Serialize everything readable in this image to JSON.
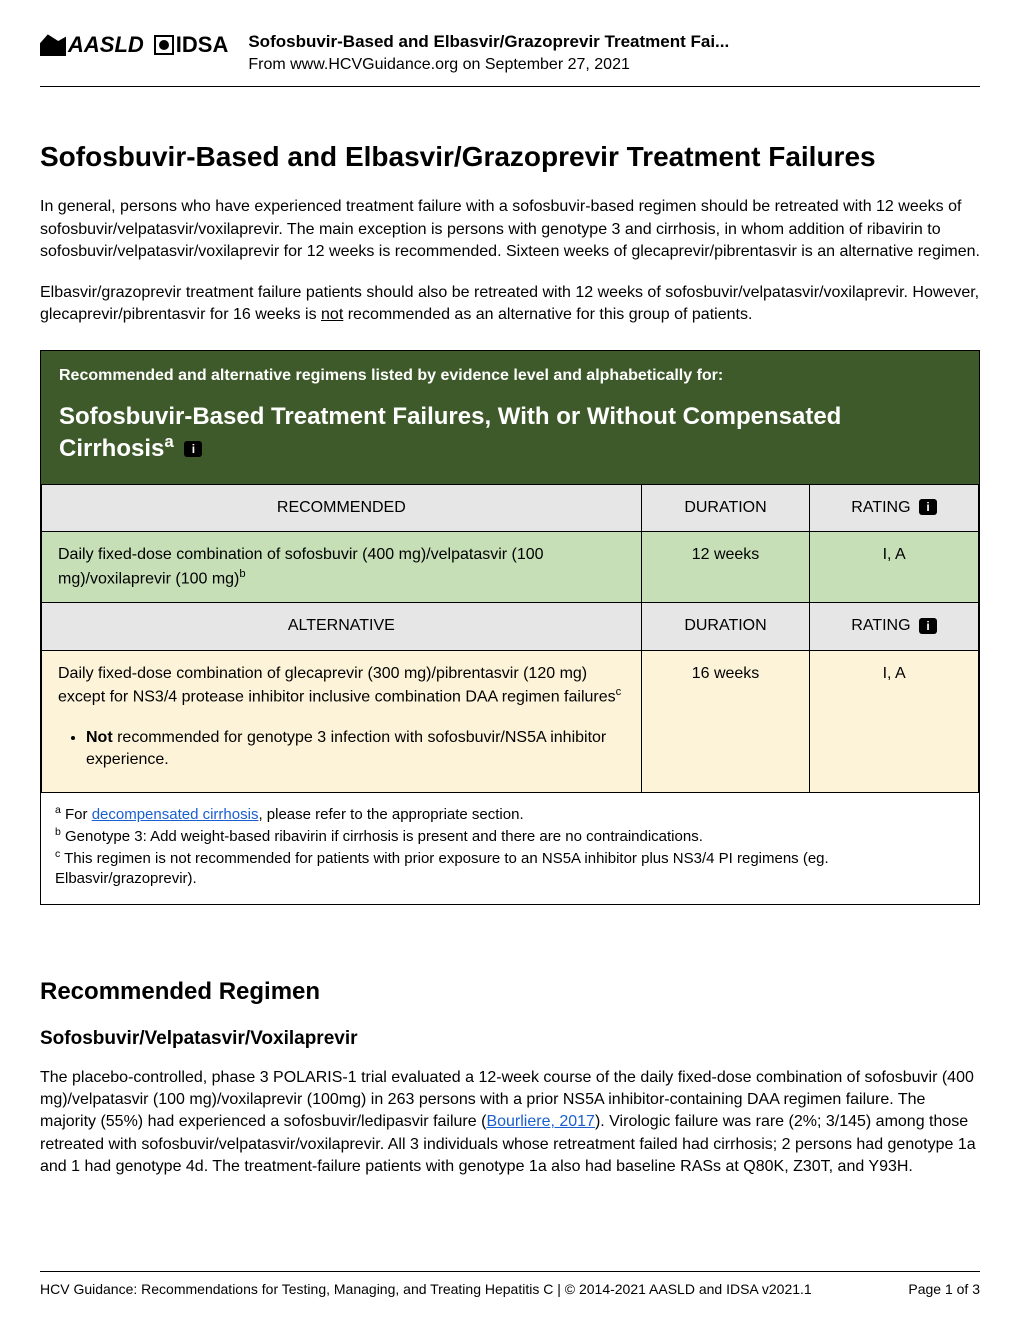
{
  "colors": {
    "header_green": "#3f5a2a",
    "row_green": "#c6dfb6",
    "row_cream": "#fdf3d9",
    "th_grey": "#e6e6e6",
    "link": "#1a5fd0",
    "text": "#000000",
    "background": "#ffffff"
  },
  "header": {
    "logo1": "AASLD",
    "logo2": "IDSA",
    "title": "Sofosbuvir-Based and Elbasvir/Grazoprevir Treatment Fai...",
    "subtitle": "From www.HCVGuidance.org on September 27, 2021"
  },
  "page_title": "Sofosbuvir-Based and Elbasvir/Grazoprevir Treatment Failures",
  "intro": {
    "p1a": "In general, persons who have experienced treatment failure with a sofosbuvir-based regimen should be retreated with 12 weeks of sofosbuvir/velpatasvir/voxilaprevir. The main exception is persons with genotype 3 and cirrhosis, in whom addition of ribavirin to sofosbuvir/velpatasvir/voxilaprevir for 12 weeks is recommended. Sixteen weeks of glecaprevir/pibrentasvir is an alternative regimen.",
    "p2a": "Elbasvir/grazoprevir treatment failure patients should also be retreated with 12 weeks of sofosbuvir/velpatasvir/voxilaprevir. However, glecaprevir/pibrentasvir for 16 weeks is ",
    "p2_not": "not",
    "p2b": " recommended as an alternative for this group of patients."
  },
  "box": {
    "header_top": "Recommended and alternative regimens listed by evidence level and alphabetically for:",
    "header_main_a": "Sofosbuvir-Based Treatment Failures, With or Without Compensated Cirrhosis",
    "header_sup": "a",
    "info_glyph": "i",
    "columns": {
      "recommended": "RECOMMENDED",
      "alternative": "ALTERNATIVE",
      "duration": "DURATION",
      "rating": "RATING"
    },
    "rec_row": {
      "regimen_a": "Daily fixed-dose combination of sofosbuvir (400 mg)/velpatasvir (100 mg)/voxilaprevir (100 mg)",
      "regimen_sup": "b",
      "duration": "12 weeks",
      "rating": "I, A"
    },
    "alt_row": {
      "regimen_a": "Daily fixed-dose combination of glecaprevir (300 mg)/pibrentasvir (120 mg) except for NS3/4 protease inhibitor inclusive combination DAA regimen failures",
      "regimen_sup": "c",
      "duration": "16 weeks",
      "rating": "I, A",
      "note_bold": "Not",
      "note_rest": " recommended for genotype 3 infection with sofosbuvir/NS5A inhibitor experience."
    },
    "footnotes": {
      "a_sup": "a",
      "a_pre": " For ",
      "a_link": "decompensated cirrhosis",
      "a_post": ", please refer to the appropriate section.",
      "b_sup": "b",
      "b_text": " Genotype 3: Add weight-based ribavirin if cirrhosis is present and there are no contraindications.",
      "c_sup": "c",
      "c_text": " This regimen is not recommended for patients with prior exposure to an NS5A inhibitor plus NS3/4 PI regimens (eg. Elbasvir/grazoprevir)."
    }
  },
  "section2": {
    "heading": "Recommended Regimen",
    "subheading": "Sofosbuvir/Velpatasvir/Voxilaprevir",
    "para_a": "The placebo-controlled, phase 3 POLARIS-1 trial evaluated a 12-week course of the daily fixed-dose combination of sofosbuvir (400 mg)/velpatasvir (100 mg)/voxilaprevir (100mg) in 263 persons with a prior NS5A inhibitor-containing DAA regimen failure. The majority (55%) had experienced a sofosbuvir/ledipasvir failure (",
    "para_link": "Bourliere, 2017",
    "para_b": "). Virologic failure was rare (2%; 3/145) among those retreated with sofosbuvir/velpatasvir/voxilaprevir. All 3 individuals whose retreatment failed had cirrhosis; 2 persons had genotype 1a and 1 had genotype 4d. The treatment-failure patients with genotype 1a also had baseline RASs at Q80K, Z30T, and Y93H."
  },
  "footer": {
    "left": "HCV Guidance: Recommendations for Testing, Managing, and Treating Hepatitis C | © 2014-2021 AASLD and IDSA v2021.1",
    "right": "Page 1 of 3"
  }
}
